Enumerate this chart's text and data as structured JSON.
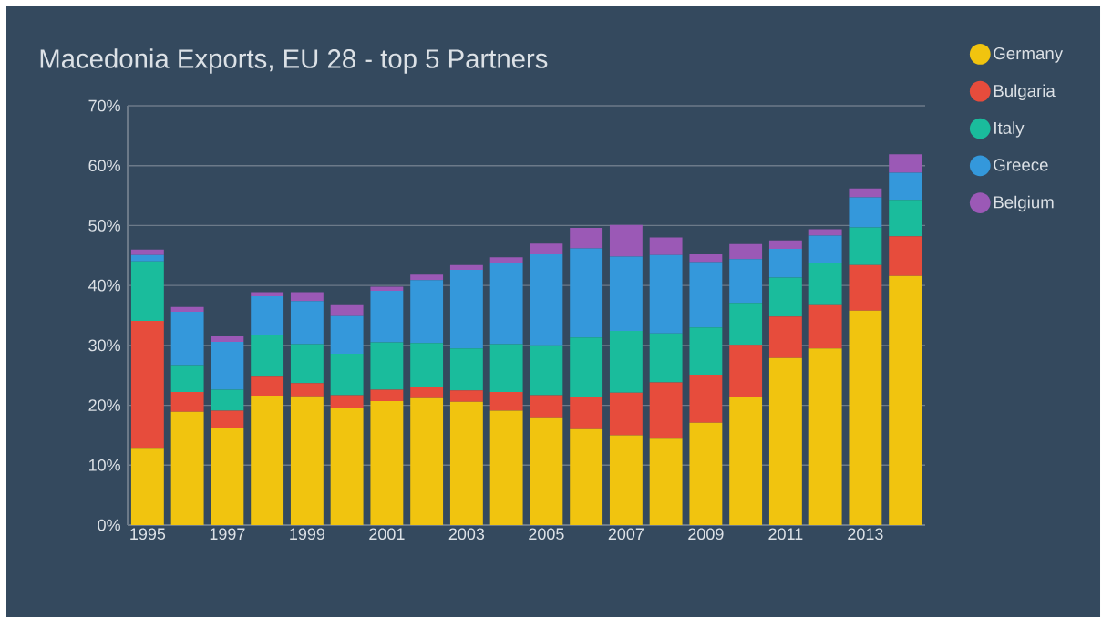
{
  "chart_data": {
    "type": "bar",
    "title": "Macedonia Exports, EU 28 - top 5 Partners",
    "stacked": true,
    "grid": "y",
    "legend": "right",
    "categories": [
      "1995",
      null,
      "1997",
      null,
      "1999",
      null,
      "2001",
      null,
      "2003",
      null,
      "2005",
      null,
      "2007",
      null,
      "2009",
      null,
      "2011",
      null,
      "2013",
      null
    ],
    "ylim": [
      0,
      70
    ],
    "yticks": [
      {
        "value": 0,
        "label": "0%"
      },
      {
        "value": 10,
        "label": "10%"
      },
      {
        "value": 20,
        "label": "20%"
      },
      {
        "value": 30,
        "label": "30%"
      },
      {
        "value": 40,
        "label": "40%"
      },
      {
        "value": 50,
        "label": "50%"
      },
      {
        "value": 60,
        "label": "60%"
      },
      {
        "value": 70,
        "label": "70%"
      }
    ],
    "series": [
      {
        "name": "Germany",
        "color": "#f1c40f",
        "values": [
          12.9,
          18.9,
          16.3,
          21.6,
          21.5,
          19.6,
          20.7,
          21.2,
          20.6,
          19.1,
          18.0,
          16.0,
          15.0,
          14.4,
          17.1,
          21.4,
          27.9,
          29.5,
          35.8,
          41.6
        ]
      },
      {
        "name": "Bulgaria",
        "color": "#e74c3c",
        "values": [
          21.2,
          3.3,
          2.8,
          3.3,
          2.2,
          2.1,
          1.9,
          1.9,
          1.9,
          3.1,
          3.7,
          5.4,
          7.1,
          9.4,
          8.0,
          8.7,
          6.9,
          7.2,
          7.6,
          6.6
        ]
      },
      {
        "name": "Italy",
        "color": "#1abc9c",
        "values": [
          9.9,
          4.5,
          3.5,
          6.9,
          6.5,
          6.9,
          7.9,
          7.3,
          7.0,
          8.0,
          8.3,
          9.9,
          10.3,
          8.2,
          7.9,
          7.0,
          6.5,
          7.0,
          6.3,
          6.1
        ]
      },
      {
        "name": "Greece",
        "color": "#3498db",
        "values": [
          1.1,
          8.9,
          8.0,
          6.4,
          7.2,
          6.3,
          8.6,
          10.5,
          13.1,
          13.6,
          15.2,
          14.9,
          12.4,
          13.1,
          10.9,
          7.3,
          4.8,
          4.6,
          5.0,
          4.5
        ]
      },
      {
        "name": "Belgium",
        "color": "#9b59b6",
        "values": [
          0.9,
          0.8,
          0.9,
          0.7,
          1.5,
          1.8,
          0.7,
          0.9,
          0.8,
          0.9,
          1.8,
          3.4,
          5.3,
          2.9,
          1.3,
          2.5,
          1.4,
          1.1,
          1.5,
          3.1
        ]
      }
    ]
  }
}
